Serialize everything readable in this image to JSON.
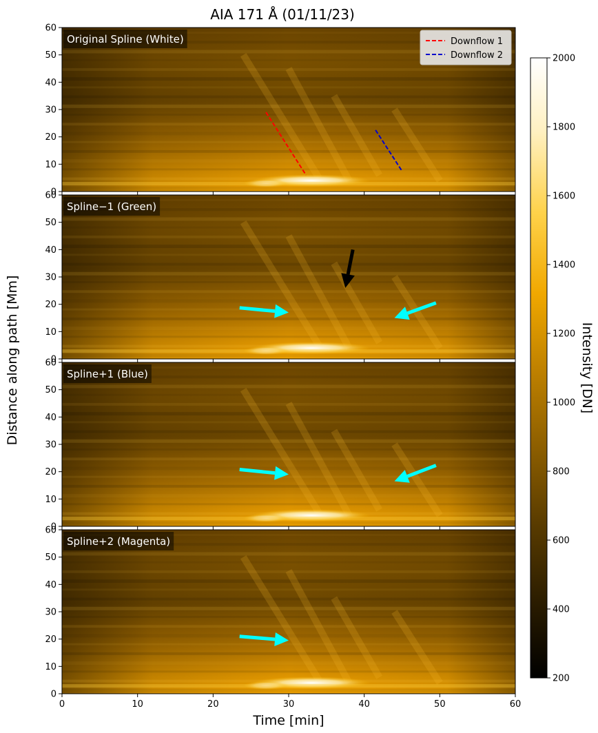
{
  "figure": {
    "title": "AIA 171 Å (01/11/23)",
    "xlabel": "Time [min]",
    "ylabel": "Distance along path [Mm]"
  },
  "colorbar": {
    "label": "Intensity [DN]",
    "min": 200,
    "max": 2000,
    "ticks": [
      200,
      400,
      600,
      800,
      1000,
      1200,
      1400,
      1600,
      1800,
      2000
    ],
    "colormap": [
      "#000000",
      "#2a1c00",
      "#5a3c00",
      "#8c5e00",
      "#c08200",
      "#f0a800",
      "#ffd24a",
      "#fff0c0",
      "#ffffff"
    ]
  },
  "chart_data": [
    {
      "type": "heatmap",
      "panel_label": "Original Spline (White)",
      "xlim": [
        0,
        60
      ],
      "ylim": [
        0,
        60
      ],
      "xticks": [
        0,
        10,
        20,
        30,
        40,
        50,
        60
      ],
      "yticks": [
        0,
        10,
        20,
        30,
        40,
        50,
        60
      ],
      "legend": {
        "placement": "top-right",
        "entries": [
          {
            "label": "Downflow 1",
            "color": "#ff0000"
          },
          {
            "label": "Downflow 2",
            "color": "#0000cc"
          }
        ]
      },
      "lines": [
        {
          "label": "Downflow 1",
          "color": "#ff0000",
          "style": "dashed",
          "x": [
            27.0,
            32.3
          ],
          "y": [
            29.0,
            6.0
          ]
        },
        {
          "label": "Downflow 2",
          "color": "#0000cc",
          "style": "dashed",
          "x": [
            41.5,
            45.0
          ],
          "y": [
            22.5,
            7.5
          ]
        }
      ],
      "arrows": []
    },
    {
      "type": "heatmap",
      "panel_label": "Spline−1 (Green)",
      "xlim": [
        0,
        60
      ],
      "ylim": [
        0,
        60
      ],
      "xticks": [
        0,
        10,
        20,
        30,
        40,
        50,
        60
      ],
      "yticks": [
        0,
        10,
        20,
        30,
        40,
        50,
        60
      ],
      "lines": [],
      "arrows": [
        {
          "color": "#00ffff",
          "from": [
            23.5,
            18.7
          ],
          "to": [
            30.0,
            17.0
          ]
        },
        {
          "color": "#00ffff",
          "from": [
            49.5,
            20.5
          ],
          "to": [
            44.0,
            15.0
          ]
        },
        {
          "color": "#000000",
          "from": [
            38.5,
            40.0
          ],
          "to": [
            37.5,
            26.0
          ]
        }
      ]
    },
    {
      "type": "heatmap",
      "panel_label": "Spline+1 (Blue)",
      "xlim": [
        0,
        60
      ],
      "ylim": [
        0,
        60
      ],
      "xticks": [
        0,
        10,
        20,
        30,
        40,
        50,
        60
      ],
      "yticks": [
        0,
        10,
        20,
        30,
        40,
        50,
        60
      ],
      "lines": [],
      "arrows": [
        {
          "color": "#00ffff",
          "from": [
            23.5,
            20.8
          ],
          "to": [
            30.0,
            19.0
          ]
        },
        {
          "color": "#00ffff",
          "from": [
            49.5,
            22.3
          ],
          "to": [
            44.0,
            16.5
          ]
        }
      ]
    },
    {
      "type": "heatmap",
      "panel_label": "Spline+2 (Magenta)",
      "xlim": [
        0,
        60
      ],
      "ylim": [
        0,
        60
      ],
      "xticks": [
        0,
        10,
        20,
        30,
        40,
        50,
        60
      ],
      "yticks": [
        0,
        10,
        20,
        30,
        40,
        50,
        60
      ],
      "lines": [],
      "arrows": [
        {
          "color": "#00ffff",
          "from": [
            23.5,
            21.0
          ],
          "to": [
            30.0,
            19.5
          ]
        }
      ]
    }
  ]
}
